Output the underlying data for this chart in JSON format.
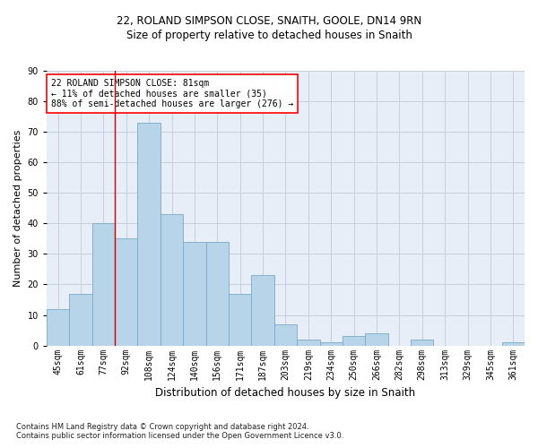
{
  "title_line1": "22, ROLAND SIMPSON CLOSE, SNAITH, GOOLE, DN14 9RN",
  "title_line2": "Size of property relative to detached houses in Snaith",
  "xlabel": "Distribution of detached houses by size in Snaith",
  "ylabel": "Number of detached properties",
  "bar_labels": [
    "45sqm",
    "61sqm",
    "77sqm",
    "92sqm",
    "108sqm",
    "124sqm",
    "140sqm",
    "156sqm",
    "171sqm",
    "187sqm",
    "203sqm",
    "219sqm",
    "234sqm",
    "250sqm",
    "266sqm",
    "282sqm",
    "298sqm",
    "313sqm",
    "329sqm",
    "345sqm",
    "361sqm"
  ],
  "bar_values": [
    12,
    17,
    40,
    35,
    73,
    43,
    34,
    34,
    17,
    23,
    7,
    2,
    1,
    3,
    4,
    0,
    2,
    0,
    0,
    0,
    1
  ],
  "bar_color": "#b8d4e8",
  "bar_edge_color": "#7aaac8",
  "ylim": [
    0,
    90
  ],
  "yticks": [
    0,
    10,
    20,
    30,
    40,
    50,
    60,
    70,
    80,
    90
  ],
  "grid_color": "#c8d0dc",
  "annotation_text": "22 ROLAND SIMPSON CLOSE: 81sqm\n← 11% of detached houses are smaller (35)\n88% of semi-detached houses are larger (276) →",
  "vline_x": 2.5,
  "vline_color": "#cc0000",
  "footnote1": "Contains HM Land Registry data © Crown copyright and database right 2024.",
  "footnote2": "Contains public sector information licensed under the Open Government Licence v3.0.",
  "background_color": "#e8eef8",
  "title1_fontsize": 8.5,
  "title2_fontsize": 8.5,
  "ylabel_fontsize": 8,
  "xlabel_fontsize": 8.5,
  "tick_fontsize": 7,
  "annot_fontsize": 7,
  "footnote_fontsize": 6
}
